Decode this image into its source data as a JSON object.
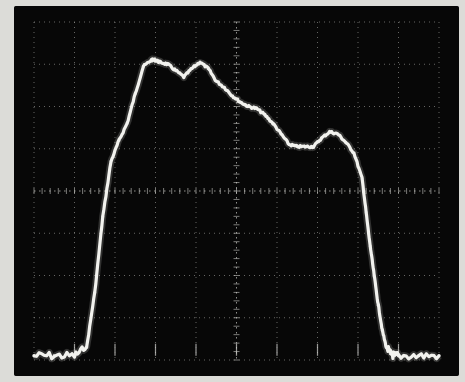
{
  "colors": {
    "screen": "#070707",
    "frame": "#dcdcd8",
    "trace": "#f2f2ee",
    "graticule": "#d8d8d4"
  },
  "graticule": {
    "x_divisions": 10,
    "y_divisions": 8
  },
  "chart_data": {
    "type": "line",
    "title": "",
    "xlabel": "",
    "ylabel": "",
    "xlim": [
      0,
      10
    ],
    "ylim": [
      0,
      8
    ],
    "grid": true,
    "legend": "none",
    "series": [
      {
        "x": [
          0.0,
          0.5,
          1.0,
          1.3,
          1.5,
          1.7,
          1.9,
          2.1,
          2.3,
          2.5,
          2.7,
          2.9,
          3.0,
          3.1,
          3.3,
          3.5,
          3.7,
          3.9,
          4.1,
          4.3,
          4.5,
          4.7,
          4.9,
          5.1,
          5.3,
          5.5,
          5.7,
          5.9,
          6.1,
          6.3,
          6.5,
          6.7,
          6.9,
          7.1,
          7.3,
          7.5,
          7.7,
          7.9,
          8.1,
          8.2,
          8.3,
          8.4,
          8.5,
          8.6,
          8.7,
          8.8,
          8.9,
          9.0,
          9.5,
          10.0
        ],
        "y": [
          0.1,
          0.1,
          0.1,
          0.3,
          1.6,
          3.4,
          4.7,
          5.2,
          5.6,
          6.3,
          6.95,
          7.1,
          7.1,
          7.05,
          7.0,
          6.85,
          6.7,
          6.9,
          7.05,
          6.9,
          6.6,
          6.45,
          6.25,
          6.1,
          6.0,
          5.95,
          5.8,
          5.6,
          5.35,
          5.1,
          5.05,
          5.05,
          5.05,
          5.25,
          5.4,
          5.35,
          5.15,
          4.9,
          4.3,
          3.5,
          2.7,
          2.0,
          1.3,
          0.7,
          0.3,
          0.15,
          0.1,
          0.1,
          0.1,
          0.1
        ]
      }
    ]
  }
}
